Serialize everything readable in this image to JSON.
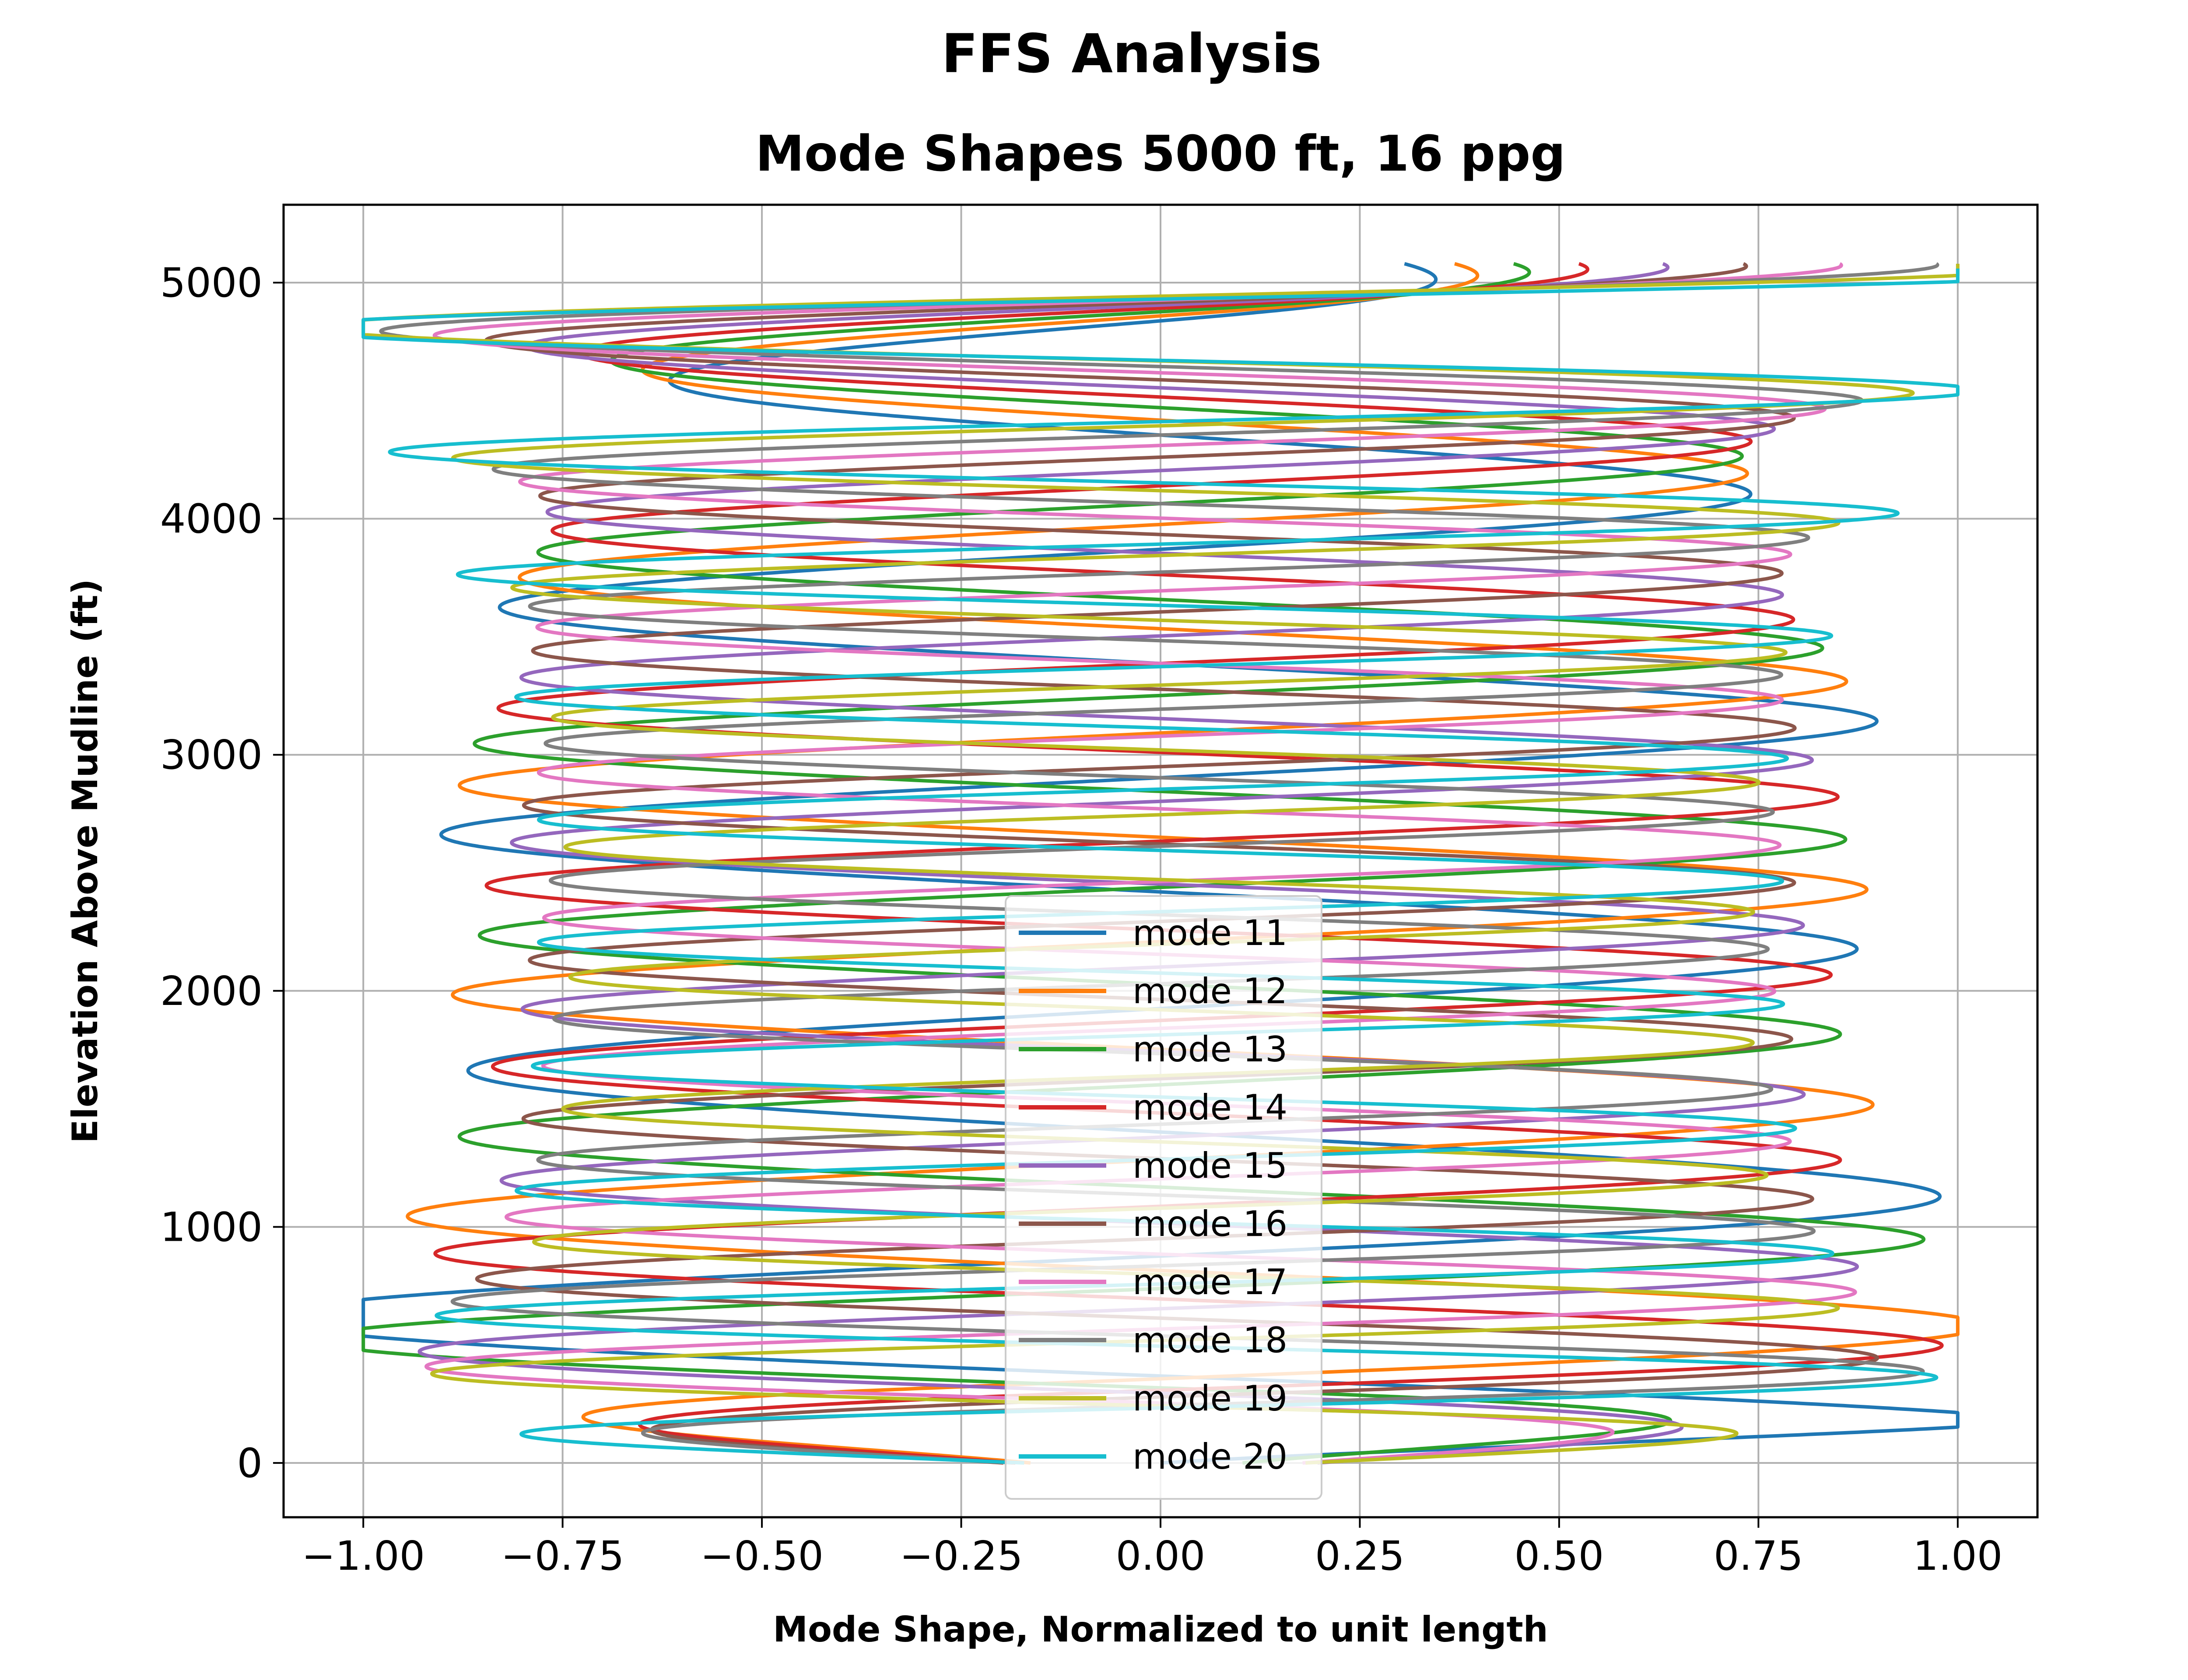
{
  "chart_data": {
    "type": "line",
    "suptitle": "FFS Analysis",
    "title": "Mode Shapes 5000 ft, 16 ppg",
    "xlabel": "Mode Shape, Normalized to unit length",
    "ylabel": "Elevation Above Mudline (ft)",
    "xlim": [
      -1.1,
      1.1
    ],
    "ylim": [
      -230,
      5330
    ],
    "xticks": [
      -1.0,
      -0.75,
      -0.5,
      -0.25,
      0.0,
      0.25,
      0.5,
      0.75,
      1.0
    ],
    "xtick_labels": [
      "−1.00",
      "−0.75",
      "−0.50",
      "−0.25",
      "0.00",
      "0.25",
      "0.50",
      "0.75",
      "1.00"
    ],
    "yticks": [
      0,
      1000,
      2000,
      3000,
      4000,
      5000
    ],
    "ytick_labels": [
      "0",
      "1000",
      "2000",
      "3000",
      "4000",
      "5000"
    ],
    "grid": true,
    "legend_position": "bottom-center",
    "series": [
      {
        "name": "mode 11",
        "color": "#1f77b4",
        "top_y": 5080,
        "x_start": 0.0,
        "x_end": 0.51,
        "mid_amp": 0.85,
        "envelope": [
          [
            0,
            0.0
          ],
          [
            180,
            0.86
          ],
          [
            900,
            0.88
          ],
          [
            1800,
            0.85
          ],
          [
            2600,
            0.9
          ],
          [
            3600,
            0.94
          ],
          [
            4000,
            0.98
          ],
          [
            4450,
            0.98
          ],
          [
            4850,
            0.9
          ],
          [
            4950,
            0.75
          ],
          [
            5080,
            0.51
          ]
        ]
      },
      {
        "name": "mode 12",
        "color": "#ff7f0e",
        "top_y": 5080,
        "x_start": -0.22,
        "x_end": 0.56,
        "mid_amp": 0.85,
        "envelope": [
          [
            0,
            0.22
          ],
          [
            300,
            0.88
          ],
          [
            1200,
            0.87
          ],
          [
            2100,
            0.89
          ],
          [
            2900,
            0.88
          ],
          [
            3700,
            0.92
          ],
          [
            4100,
            0.95
          ],
          [
            4500,
            0.96
          ],
          [
            4870,
            0.9
          ],
          [
            4960,
            0.76
          ],
          [
            5080,
            0.56
          ]
        ]
      },
      {
        "name": "mode 13",
        "color": "#2ca02c",
        "top_y": 5080,
        "x_start": 0.12,
        "x_end": 0.61,
        "mid_amp": 0.84,
        "envelope": [
          [
            0,
            0.12
          ],
          [
            300,
            0.86
          ],
          [
            1100,
            0.84
          ],
          [
            1900,
            0.85
          ],
          [
            2700,
            0.86
          ],
          [
            3500,
            0.88
          ],
          [
            4200,
            0.9
          ],
          [
            4560,
            0.93
          ],
          [
            4880,
            0.9
          ],
          [
            4970,
            0.77
          ],
          [
            5080,
            0.61
          ]
        ]
      },
      {
        "name": "mode 14",
        "color": "#d62728",
        "top_y": 5080,
        "x_start": -0.27,
        "x_end": 0.66,
        "mid_amp": 0.83,
        "envelope": [
          [
            0,
            0.27
          ],
          [
            300,
            0.85
          ],
          [
            1200,
            0.82
          ],
          [
            2000,
            0.84
          ],
          [
            2800,
            0.85
          ],
          [
            3600,
            0.84
          ],
          [
            4200,
            0.86
          ],
          [
            4560,
            0.9
          ],
          [
            4890,
            0.9
          ],
          [
            4975,
            0.78
          ],
          [
            5080,
            0.66
          ]
        ]
      },
      {
        "name": "mode 15",
        "color": "#9467bd",
        "top_y": 5080,
        "x_start": 0.35,
        "x_end": 0.71,
        "mid_amp": 0.8,
        "envelope": [
          [
            0,
            0.35
          ],
          [
            300,
            0.84
          ],
          [
            1100,
            0.8
          ],
          [
            2000,
            0.8
          ],
          [
            2900,
            0.82
          ],
          [
            3700,
            0.81
          ],
          [
            4300,
            0.83
          ],
          [
            4600,
            0.88
          ],
          [
            4900,
            0.9
          ],
          [
            4980,
            0.8
          ],
          [
            5080,
            0.71
          ]
        ]
      },
      {
        "name": "mode 16",
        "color": "#8c564b",
        "top_y": 5080,
        "x_start": -0.38,
        "x_end": 0.76,
        "mid_amp": 0.79,
        "envelope": [
          [
            0,
            0.38
          ],
          [
            300,
            0.82
          ],
          [
            1100,
            0.79
          ],
          [
            2000,
            0.79
          ],
          [
            2900,
            0.8
          ],
          [
            3700,
            0.79
          ],
          [
            4300,
            0.8
          ],
          [
            4620,
            0.85
          ],
          [
            4910,
            0.91
          ],
          [
            4985,
            0.83
          ],
          [
            5080,
            0.76
          ]
        ]
      },
      {
        "name": "mode 17",
        "color": "#e377c2",
        "top_y": 5080,
        "x_start": 0.28,
        "x_end": 0.81,
        "mid_amp": 0.77,
        "envelope": [
          [
            0,
            0.28
          ],
          [
            300,
            0.8
          ],
          [
            1100,
            0.77
          ],
          [
            2000,
            0.77
          ],
          [
            2900,
            0.78
          ],
          [
            3700,
            0.77
          ],
          [
            4300,
            0.78
          ],
          [
            4640,
            0.82
          ],
          [
            4920,
            0.92
          ],
          [
            4990,
            0.86
          ],
          [
            5080,
            0.81
          ]
        ]
      },
      {
        "name": "mode 18",
        "color": "#7f7f7f",
        "top_y": 5080,
        "x_start": -0.32,
        "x_end": 0.86,
        "mid_amp": 0.76,
        "envelope": [
          [
            0,
            0.32
          ],
          [
            250,
            0.86
          ],
          [
            1100,
            0.76
          ],
          [
            2000,
            0.76
          ],
          [
            2900,
            0.77
          ],
          [
            3700,
            0.76
          ],
          [
            4300,
            0.77
          ],
          [
            4660,
            0.81
          ],
          [
            4930,
            0.93
          ],
          [
            5000,
            0.9
          ],
          [
            5080,
            0.86
          ]
        ]
      },
      {
        "name": "mode 19",
        "color": "#bcbd22",
        "top_y": 5080,
        "x_start": 0.44,
        "x_end": 0.93,
        "mid_amp": 0.75,
        "envelope": [
          [
            0,
            0.44
          ],
          [
            220,
            0.88
          ],
          [
            1000,
            0.75
          ],
          [
            2000,
            0.74
          ],
          [
            2900,
            0.75
          ],
          [
            3700,
            0.75
          ],
          [
            4300,
            0.76
          ],
          [
            4700,
            0.8
          ],
          [
            4940,
            0.95
          ],
          [
            5010,
            0.97
          ],
          [
            5080,
            0.93
          ]
        ]
      },
      {
        "name": "mode 20",
        "color": "#17becf",
        "top_y": 5060,
        "x_start": -0.5,
        "x_end": 0.98,
        "mid_amp": 0.76,
        "envelope": [
          [
            0,
            0.5
          ],
          [
            200,
            0.96
          ],
          [
            1000,
            0.8
          ],
          [
            2000,
            0.78
          ],
          [
            2900,
            0.78
          ],
          [
            3700,
            0.79
          ],
          [
            4400,
            0.8
          ],
          [
            4780,
            0.85
          ],
          [
            4950,
            0.98
          ],
          [
            5020,
            1.0
          ],
          [
            5060,
            0.98
          ]
        ]
      }
    ]
  }
}
